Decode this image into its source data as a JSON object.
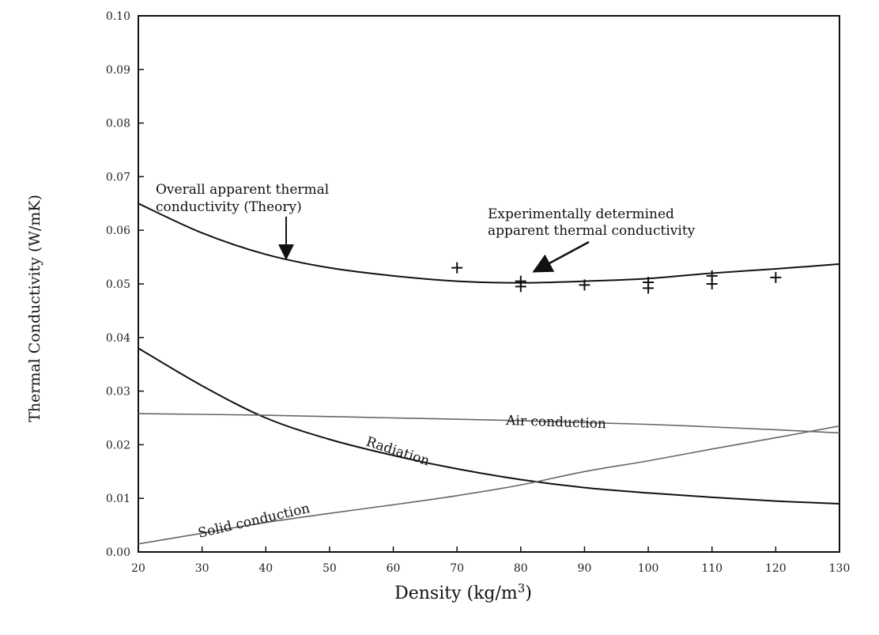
{
  "chart_data": {
    "type": "line",
    "xlabel": "Density (kg/m",
    "xlabel_sup": "3",
    "xlabel_end": ")",
    "ylabel": "Thermal Conductivity (W/mK)",
    "xlim": [
      20,
      130
    ],
    "ylim": [
      0.0,
      0.1
    ],
    "x_ticks": [
      20,
      30,
      40,
      50,
      60,
      70,
      80,
      90,
      100,
      110,
      120,
      130
    ],
    "x_tick_labels": [
      "20",
      "30",
      "40",
      "50",
      "60",
      "70",
      "80",
      "90",
      "100",
      "110",
      "120",
      "130"
    ],
    "y_ticks": [
      0.0,
      0.01,
      0.02,
      0.03,
      0.04,
      0.05,
      0.06,
      0.07,
      0.08,
      0.09,
      0.1
    ],
    "y_tick_labels": [
      "0.00",
      "0.01",
      "0.02",
      "0.03",
      "0.04",
      "0.05",
      "0.06",
      "0.07",
      "0.08",
      "0.09",
      "0.10"
    ],
    "grid": false,
    "series": [
      {
        "key": "overall",
        "x": [
          20,
          30,
          40,
          50,
          60,
          70,
          80,
          90,
          100,
          110,
          120,
          130
        ],
        "y": [
          0.065,
          0.0595,
          0.0555,
          0.053,
          0.0515,
          0.0505,
          0.0502,
          0.0505,
          0.051,
          0.052,
          0.0528,
          0.0537
        ]
      },
      {
        "key": "radiation",
        "x": [
          20,
          30,
          40,
          50,
          60,
          70,
          80,
          90,
          100,
          110,
          120,
          130
        ],
        "y": [
          0.038,
          0.031,
          0.025,
          0.021,
          0.018,
          0.0155,
          0.0135,
          0.012,
          0.011,
          0.0102,
          0.0095,
          0.009
        ]
      },
      {
        "key": "air",
        "x": [
          20,
          40,
          60,
          80,
          100,
          120,
          130
        ],
        "y": [
          0.0258,
          0.0255,
          0.025,
          0.0245,
          0.0238,
          0.0228,
          0.0222
        ]
      },
      {
        "key": "solid",
        "x": [
          20,
          30,
          40,
          50,
          60,
          70,
          80,
          90,
          100,
          110,
          120,
          130
        ],
        "y": [
          0.0015,
          0.0035,
          0.0055,
          0.0072,
          0.0088,
          0.0105,
          0.0125,
          0.015,
          0.017,
          0.0192,
          0.0213,
          0.0235
        ]
      }
    ],
    "experimental_points": {
      "x": [
        70,
        80,
        80,
        90,
        100,
        100,
        110,
        110,
        120
      ],
      "y": [
        0.053,
        0.0505,
        0.0495,
        0.0498,
        0.0503,
        0.0492,
        0.0515,
        0.05,
        0.0512
      ]
    },
    "annotations": {
      "overall_line1": "Overall apparent thermal",
      "overall_line2": "conductivity (Theory)",
      "experimental_line1": "Experimentally determined",
      "experimental_line2": "apparent thermal conductivity",
      "radiation": "Radiation",
      "air": "Air conduction",
      "solid": "Solid conduction"
    }
  }
}
